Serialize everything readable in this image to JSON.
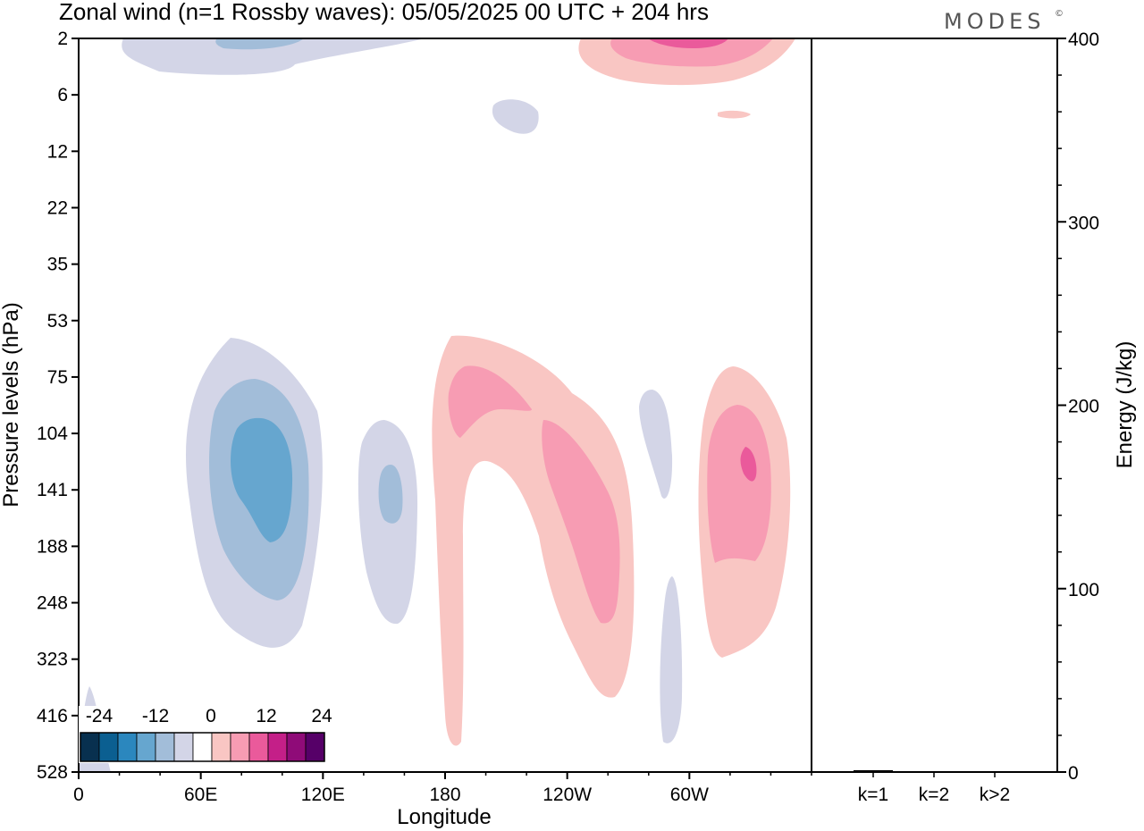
{
  "title": "Zonal wind (n=1 Rossby waves):  05/05/2025  00 UTC  + 204 hrs",
  "brand": "MODES",
  "brand_mark": "©",
  "chart_data": [
    {
      "type": "contour",
      "xlabel": "Longitude",
      "ylabel": "Pressure levels (hPa)",
      "x_ticks": [
        {
          "lon": 0,
          "label": "0"
        },
        {
          "lon": 60,
          "label": "60E"
        },
        {
          "lon": 120,
          "label": "120E"
        },
        {
          "lon": 180,
          "label": "180"
        },
        {
          "lon": 240,
          "label": "120W"
        },
        {
          "lon": 300,
          "label": "60W"
        }
      ],
      "x_range": [
        0,
        360
      ],
      "y_levels": [
        "2",
        "6",
        "12",
        "22",
        "35",
        "53",
        "75",
        "104",
        "141",
        "188",
        "248",
        "323",
        "416",
        "528"
      ],
      "colorbar": {
        "tick_labels": [
          "-24",
          "-12",
          "0",
          "12",
          "24"
        ],
        "colors": [
          "#08304f",
          "#0b5f91",
          "#2b87be",
          "#66a6cf",
          "#a2bdd9",
          "#d3d5e7",
          "#ffffff",
          "#f9c6c3",
          "#f79cb3",
          "#ea5a9b",
          "#c41f88",
          "#8f0b78",
          "#560068"
        ]
      }
    },
    {
      "type": "bar",
      "ylabel": "Energy (J/kg)",
      "categories": [
        "k=1",
        "k=2",
        "k>2"
      ],
      "values": [
        1.0,
        0.4,
        0.3
      ],
      "ylim": [
        0,
        400
      ],
      "y_ticks": [
        "0",
        "100",
        "200",
        "300",
        "400"
      ]
    }
  ]
}
